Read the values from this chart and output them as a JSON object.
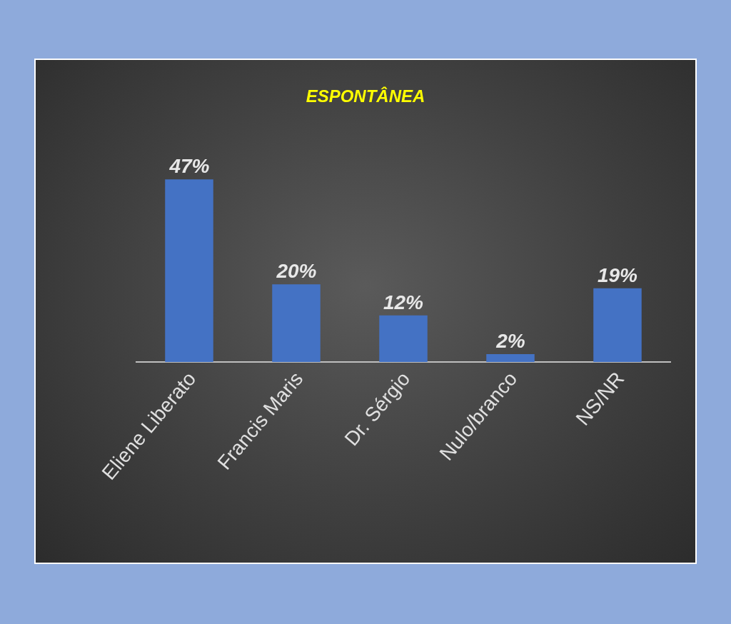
{
  "chart_data": {
    "type": "bar",
    "title": "ESPONTÂNEA",
    "categories": [
      "Eliene Liberato",
      "Francis Maris",
      "Dr. Sérgio",
      "Nulo/branco",
      "NS/NR"
    ],
    "values": [
      47,
      20,
      12,
      2,
      19
    ],
    "value_labels": [
      "47%",
      "20%",
      "12%",
      "2%",
      "19%"
    ],
    "color": "#4472c4",
    "grid": false
  }
}
